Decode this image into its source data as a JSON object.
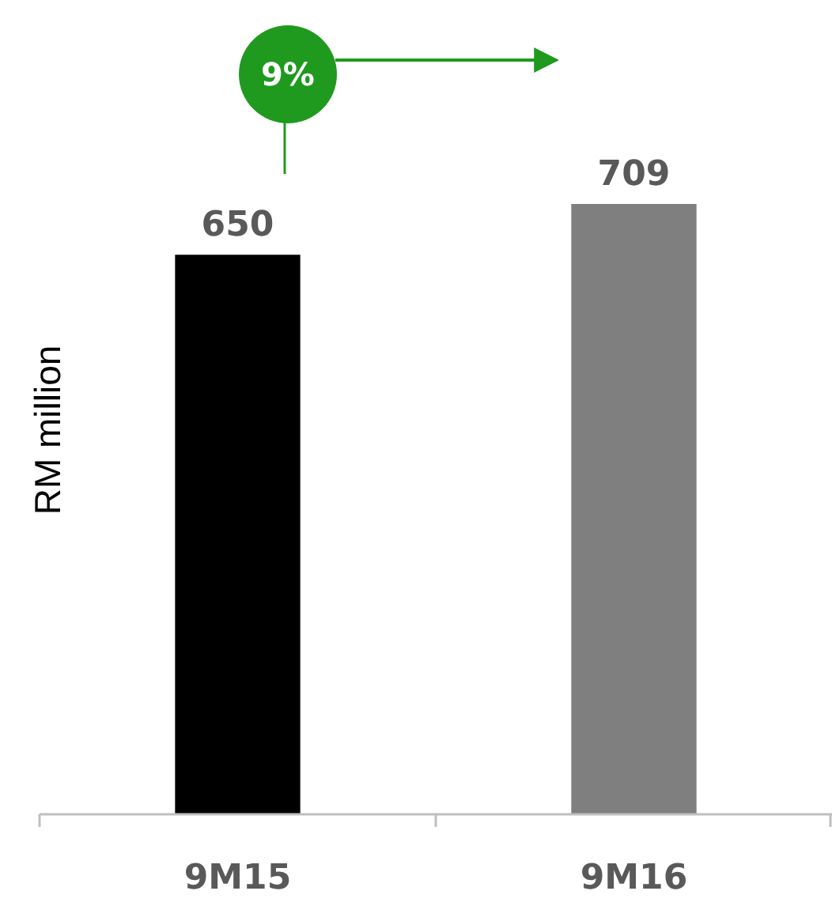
{
  "chart_data": {
    "type": "bar",
    "ylabel": "RM million",
    "categories": [
      "9M15",
      "9M16"
    ],
    "values": [
      650,
      709
    ],
    "colors": [
      "#000000",
      "#7f7f7f"
    ],
    "data_labels": true,
    "annotations": [
      "9%"
    ]
  }
}
